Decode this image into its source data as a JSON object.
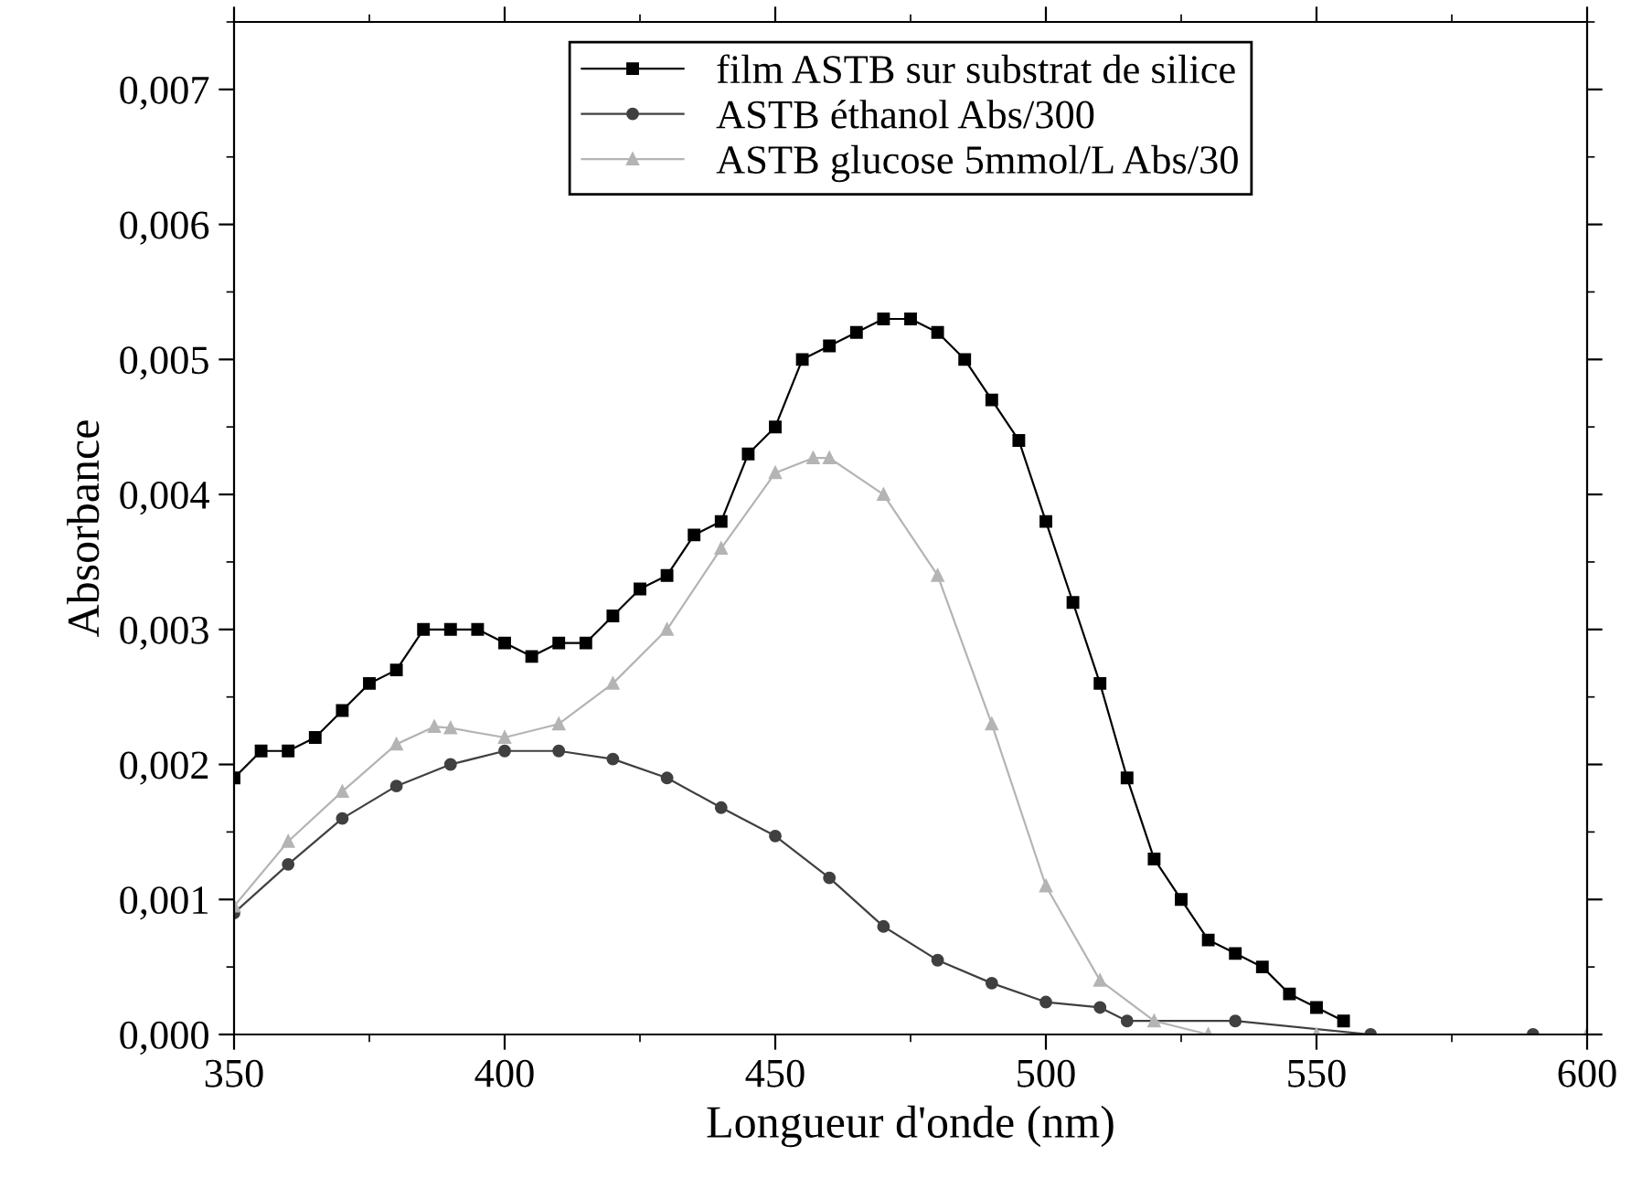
{
  "chart_data": {
    "type": "line",
    "xlabel": "Longueur d'onde (nm)",
    "ylabel": "Absorbance",
    "xlim": [
      350,
      600
    ],
    "xticks": [
      350,
      400,
      450,
      500,
      550,
      600
    ],
    "ylim": [
      0,
      0.0075
    ],
    "yticks": [
      {
        "value": 0,
        "label": "0,000"
      },
      {
        "value": 0.001,
        "label": "0,001"
      },
      {
        "value": 0.002,
        "label": "0,002"
      },
      {
        "value": 0.003,
        "label": "0,003"
      },
      {
        "value": 0.004,
        "label": "0,004"
      },
      {
        "value": 0.005,
        "label": "0,005"
      },
      {
        "value": 0.006,
        "label": "0,006"
      },
      {
        "value": 0.007,
        "label": "0,007"
      }
    ],
    "legend": "top",
    "grid": false,
    "series": [
      {
        "name": "film ASTB sur substrat de silice",
        "color": "#000000",
        "marker": "square",
        "x": [
          350,
          355,
          360,
          365,
          370,
          375,
          380,
          385,
          390,
          395,
          400,
          405,
          410,
          415,
          420,
          425,
          430,
          435,
          440,
          445,
          450,
          455,
          460,
          465,
          470,
          475,
          480,
          485,
          490,
          495,
          500,
          505,
          510,
          515,
          520,
          525,
          530,
          535,
          540,
          545,
          550,
          555
        ],
        "values": [
          0.0019,
          0.0021,
          0.0021,
          0.0022,
          0.0024,
          0.0026,
          0.0027,
          0.003,
          0.003,
          0.003,
          0.0029,
          0.0028,
          0.0029,
          0.0029,
          0.0031,
          0.0033,
          0.0034,
          0.0037,
          0.0038,
          0.0043,
          0.0045,
          0.005,
          0.0051,
          0.0052,
          0.0053,
          0.0053,
          0.0052,
          0.005,
          0.0047,
          0.0044,
          0.0038,
          0.0032,
          0.0026,
          0.0019,
          0.0013,
          0.001,
          0.0007,
          0.0006,
          0.0005,
          0.0003,
          0.0002,
          0.0001
        ]
      },
      {
        "name": "ASTB éthanol Abs/300",
        "color": "#404040",
        "marker": "circle",
        "x": [
          350,
          360,
          370,
          380,
          390,
          400,
          410,
          420,
          430,
          440,
          450,
          460,
          470,
          480,
          490,
          500,
          510,
          515,
          535,
          560,
          590
        ],
        "values": [
          0.0009,
          0.00126,
          0.0016,
          0.00184,
          0.002,
          0.0021,
          0.0021,
          0.00204,
          0.0019,
          0.00168,
          0.00147,
          0.00116,
          0.0008,
          0.00055,
          0.00038,
          0.00024,
          0.0002,
          0.0001,
          0.0001,
          0,
          0
        ]
      },
      {
        "name": "ASTB glucose 5mmol/L Abs/30",
        "color": "#b4b4b4",
        "marker": "triangle",
        "x": [
          350,
          360,
          370,
          380,
          387,
          390,
          400,
          410,
          420,
          430,
          440,
          450,
          457,
          460,
          470,
          480,
          490,
          500,
          510,
          520,
          530,
          550,
          600
        ],
        "values": [
          0.00095,
          0.00143,
          0.0018,
          0.00215,
          0.00228,
          0.00227,
          0.0022,
          0.0023,
          0.0026,
          0.003,
          0.0036,
          0.00416,
          0.00427,
          0.00427,
          0.004,
          0.0034,
          0.0023,
          0.0011,
          0.0004,
          0.0001,
          0,
          0,
          0
        ]
      }
    ]
  }
}
